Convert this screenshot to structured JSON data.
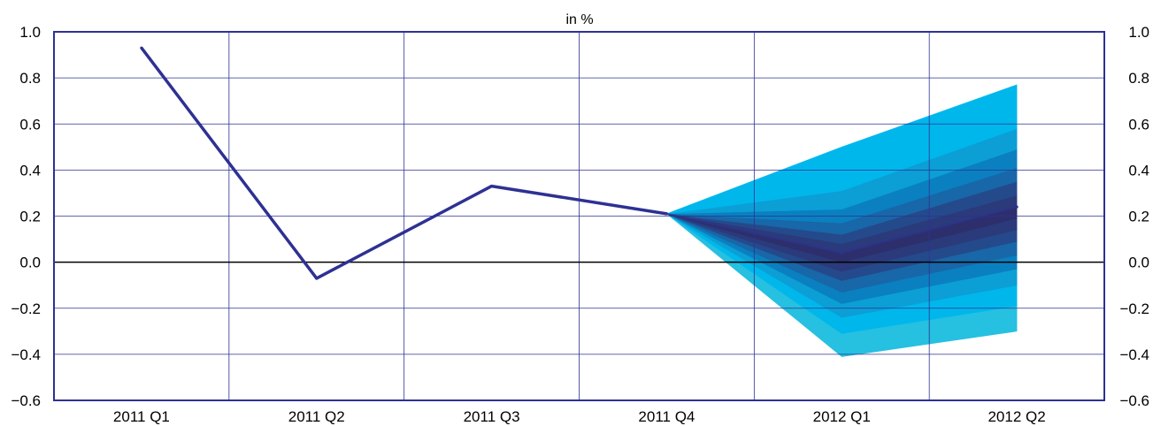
{
  "chart_data": {
    "type": "line",
    "unit_label": "in %",
    "categories": [
      "2011 Q1",
      "2011 Q2",
      "2011 Q3",
      "2011 Q4",
      "2012 Q1",
      "2012 Q2"
    ],
    "series": [
      {
        "values": [
          0.93,
          -0.07,
          0.33,
          0.21,
          0.04,
          0.24
        ]
      }
    ],
    "fan_chart": {
      "start_category": "2011 Q4",
      "start_value": 0.21,
      "band_bounds": {
        "2012 Q1": [
          -0.41,
          -0.31,
          -0.24,
          -0.18,
          -0.13,
          -0.08,
          -0.04,
          0.0,
          0.04,
          0.08,
          0.12,
          0.17,
          0.23,
          0.31,
          0.5
        ],
        "2012 Q2": [
          -0.3,
          -0.19,
          -0.1,
          -0.03,
          0.03,
          0.09,
          0.14,
          0.19,
          0.24,
          0.29,
          0.35,
          0.41,
          0.49,
          0.58,
          0.77
        ]
      },
      "colors": [
        "#26c0e0",
        "#00b7ec",
        "#0b9fd6",
        "#0a80c0",
        "#1867a8",
        "#244a8c",
        "#2b3a7a",
        "#2d2f6c",
        "#2b3a7a",
        "#244a8c",
        "#1867a8",
        "#0a80c0",
        "#0b9fd6",
        "#00b7ec"
      ]
    },
    "ylim": [
      -0.6,
      1.0
    ],
    "yticks": [
      "1.0",
      "0.8",
      "0.6",
      "0.4",
      "0.2",
      "0.0",
      "−0.2",
      "−0.4",
      "−0.6"
    ],
    "ytick_values": [
      1.0,
      0.8,
      0.6,
      0.4,
      0.2,
      0.0,
      -0.2,
      -0.4,
      -0.6
    ],
    "grid": true,
    "colors": {
      "line": "#2e3192",
      "grid": "#2e3192",
      "zero_line": "#000000"
    }
  }
}
